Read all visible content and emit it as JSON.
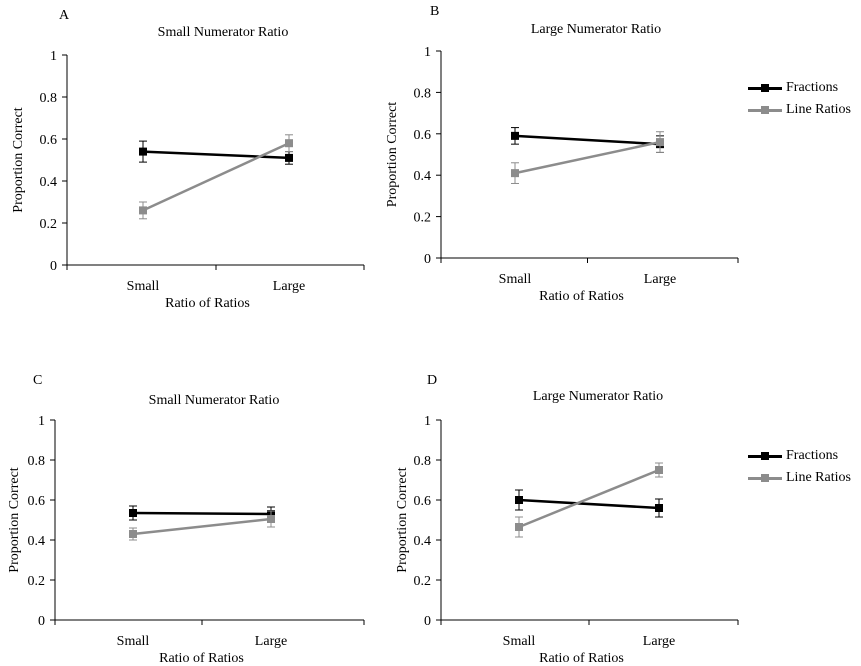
{
  "colors": {
    "fractions": "#000000",
    "line_ratios": "#8c8c8c",
    "axis": "#000000"
  },
  "legend": {
    "fractions_label": "Fractions",
    "line_ratios_label": "Line Ratios"
  },
  "chart_data": [
    {
      "panel": "A",
      "type": "line",
      "title": "Small Numerator Ratio",
      "xlabel": "Ratio of Ratios",
      "ylabel": "Proportion Correct",
      "categories": [
        "Small",
        "Large"
      ],
      "ylim": [
        0,
        1
      ],
      "yticks": [
        "0",
        "0.2",
        "0.4",
        "0.6",
        "0.8",
        "1"
      ],
      "grid": false,
      "legend_shown": false,
      "series": [
        {
          "name": "Fractions",
          "values": [
            0.54,
            0.51
          ],
          "errors": [
            0.05,
            0.03
          ]
        },
        {
          "name": "Line Ratios",
          "values": [
            0.26,
            0.58
          ],
          "errors": [
            0.04,
            0.04
          ]
        }
      ]
    },
    {
      "panel": "B",
      "type": "line",
      "title": "Large Numerator Ratio",
      "xlabel": "Ratio of Ratios",
      "ylabel": "Proportion Correct",
      "categories": [
        "Small",
        "Large"
      ],
      "ylim": [
        0,
        1
      ],
      "yticks": [
        "0",
        "0.2",
        "0.4",
        "0.6",
        "0.8",
        "1"
      ],
      "grid": false,
      "legend_shown": true,
      "legend_position": "right",
      "series": [
        {
          "name": "Fractions",
          "values": [
            0.59,
            0.55
          ],
          "errors": [
            0.04,
            0.04
          ]
        },
        {
          "name": "Line Ratios",
          "values": [
            0.41,
            0.56
          ],
          "errors": [
            0.05,
            0.05
          ]
        }
      ]
    },
    {
      "panel": "C",
      "type": "line",
      "title": "Small Numerator Ratio",
      "xlabel": "Ratio of Ratios",
      "ylabel": "Proportion Correct",
      "categories": [
        "Small",
        "Large"
      ],
      "ylim": [
        0,
        1
      ],
      "yticks": [
        "0",
        "0.2",
        "0.4",
        "0.6",
        "0.8",
        "1"
      ],
      "grid": false,
      "legend_shown": false,
      "series": [
        {
          "name": "Fractions",
          "values": [
            0.535,
            0.53
          ],
          "errors": [
            0.035,
            0.035
          ]
        },
        {
          "name": "Line Ratios",
          "values": [
            0.43,
            0.505
          ],
          "errors": [
            0.03,
            0.04
          ]
        }
      ]
    },
    {
      "panel": "D",
      "type": "line",
      "title": "Large Numerator Ratio",
      "xlabel": "Ratio of Ratios",
      "ylabel": "Proportion Correct",
      "categories": [
        "Small",
        "Large"
      ],
      "ylim": [
        0,
        1
      ],
      "yticks": [
        "0",
        "0.2",
        "0.4",
        "0.6",
        "0.8",
        "1"
      ],
      "grid": false,
      "legend_shown": true,
      "legend_position": "right",
      "series": [
        {
          "name": "Fractions",
          "values": [
            0.6,
            0.56
          ],
          "errors": [
            0.05,
            0.045
          ]
        },
        {
          "name": "Line Ratios",
          "values": [
            0.465,
            0.75
          ],
          "errors": [
            0.05,
            0.035
          ]
        }
      ]
    }
  ]
}
